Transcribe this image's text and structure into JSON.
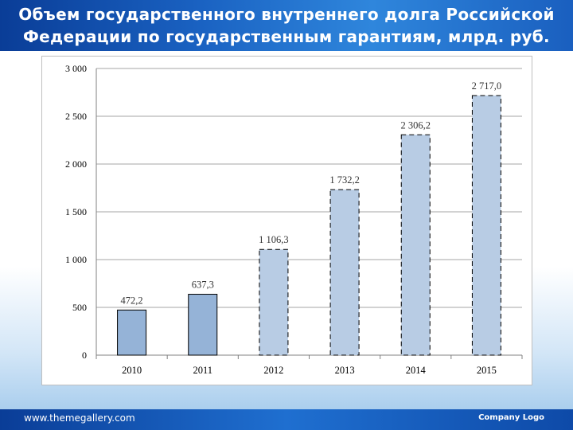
{
  "slide": {
    "title_line1": "Объем государственного внутреннего долга Российской",
    "title_line2": "Федерации по государственным гарантиям, млрд. руб."
  },
  "footer": {
    "url": "www.themegallery.com",
    "logo_text": "Company Logo"
  },
  "colors": {
    "header_blue": "#1a62c2",
    "bar_actual": "#95b3d7",
    "bar_forecast": "#b8cce4"
  },
  "chart_data": {
    "type": "bar",
    "categories": [
      "2010",
      "2011",
      "2012",
      "2013",
      "2014",
      "2015"
    ],
    "values": [
      472.2,
      637.3,
      1106.3,
      1732.2,
      2306.2,
      2717.0
    ],
    "data_labels": [
      "472,2",
      "637,3",
      "1 106,3",
      "1 732,2",
      "2 306,2",
      "2 717,0"
    ],
    "bar_style": [
      "solid",
      "solid",
      "dashed",
      "dashed",
      "dashed",
      "dashed"
    ],
    "ylim": [
      0,
      3000
    ],
    "yticks": [
      0,
      500,
      1000,
      1500,
      2000,
      2500,
      3000
    ],
    "ytick_labels": [
      "0",
      "500",
      "1 000",
      "1 500",
      "2 000",
      "2 500",
      "3 000"
    ],
    "grid": true,
    "legend": "none"
  }
}
